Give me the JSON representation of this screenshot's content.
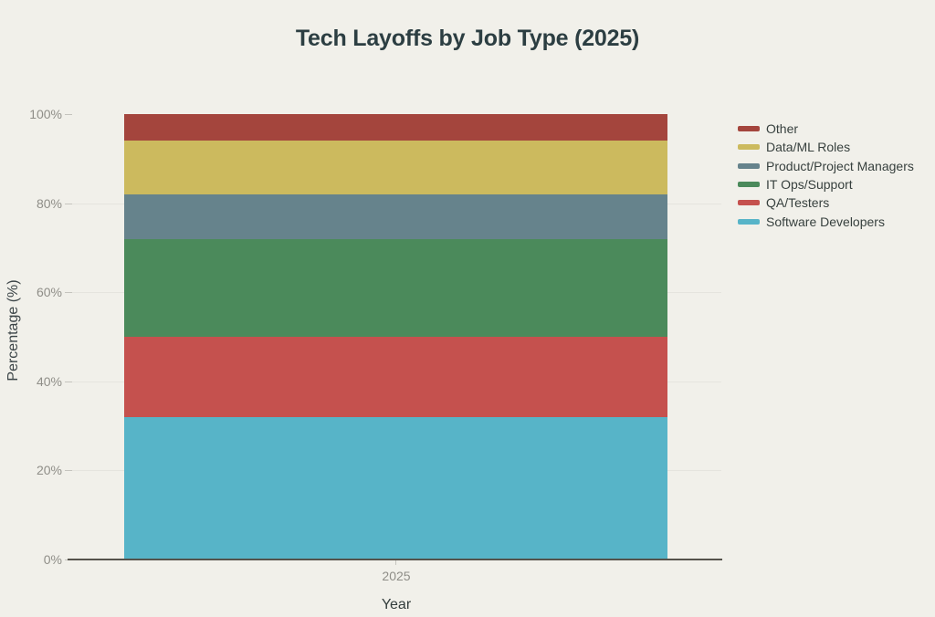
{
  "page": {
    "background": "#f1f0ea"
  },
  "chart_data": {
    "type": "bar",
    "stacked": true,
    "units": "percent",
    "title": "Tech Layoffs by Job Type (2025)",
    "xlabel": "Year",
    "ylabel": "Percentage (%)",
    "categories": [
      "2025"
    ],
    "series": [
      {
        "name": "Software Developers",
        "values": [
          32
        ],
        "color": "#57b4c8"
      },
      {
        "name": "QA/Testers",
        "values": [
          18
        ],
        "color": "#c5514e"
      },
      {
        "name": "IT Ops/Support",
        "values": [
          22
        ],
        "color": "#4b8a5b"
      },
      {
        "name": "Product/Project Managers",
        "values": [
          10
        ],
        "color": "#66838c"
      },
      {
        "name": "Data/ML Roles",
        "values": [
          12
        ],
        "color": "#ccba5e"
      },
      {
        "name": "Other",
        "values": [
          6
        ],
        "color": "#a4453d"
      }
    ],
    "legend_order_top_to_bottom": [
      "Other",
      "Data/ML Roles",
      "Product/Project Managers",
      "IT Ops/Support",
      "QA/Testers",
      "Software Developers"
    ],
    "y_ticks": [
      {
        "label": "0%",
        "value": 0
      },
      {
        "label": "20%",
        "value": 20
      },
      {
        "label": "40%",
        "value": 40
      },
      {
        "label": "60%",
        "value": 60
      },
      {
        "label": "80%",
        "value": 80
      },
      {
        "label": "100%",
        "value": 100
      }
    ],
    "ylim": [
      0,
      100
    ],
    "grid": "horizontal",
    "legend_position": "right",
    "colors": {
      "background": "#f1f0ea",
      "gridline": "#e5e4de",
      "axis_line": "#55534c",
      "tick_mark": "#c5c4be",
      "tick_label_text": "#8f8e88",
      "title_text": "#2c3e42",
      "axis_title_text": "#3c4548",
      "legend_text": "#37403e"
    }
  }
}
